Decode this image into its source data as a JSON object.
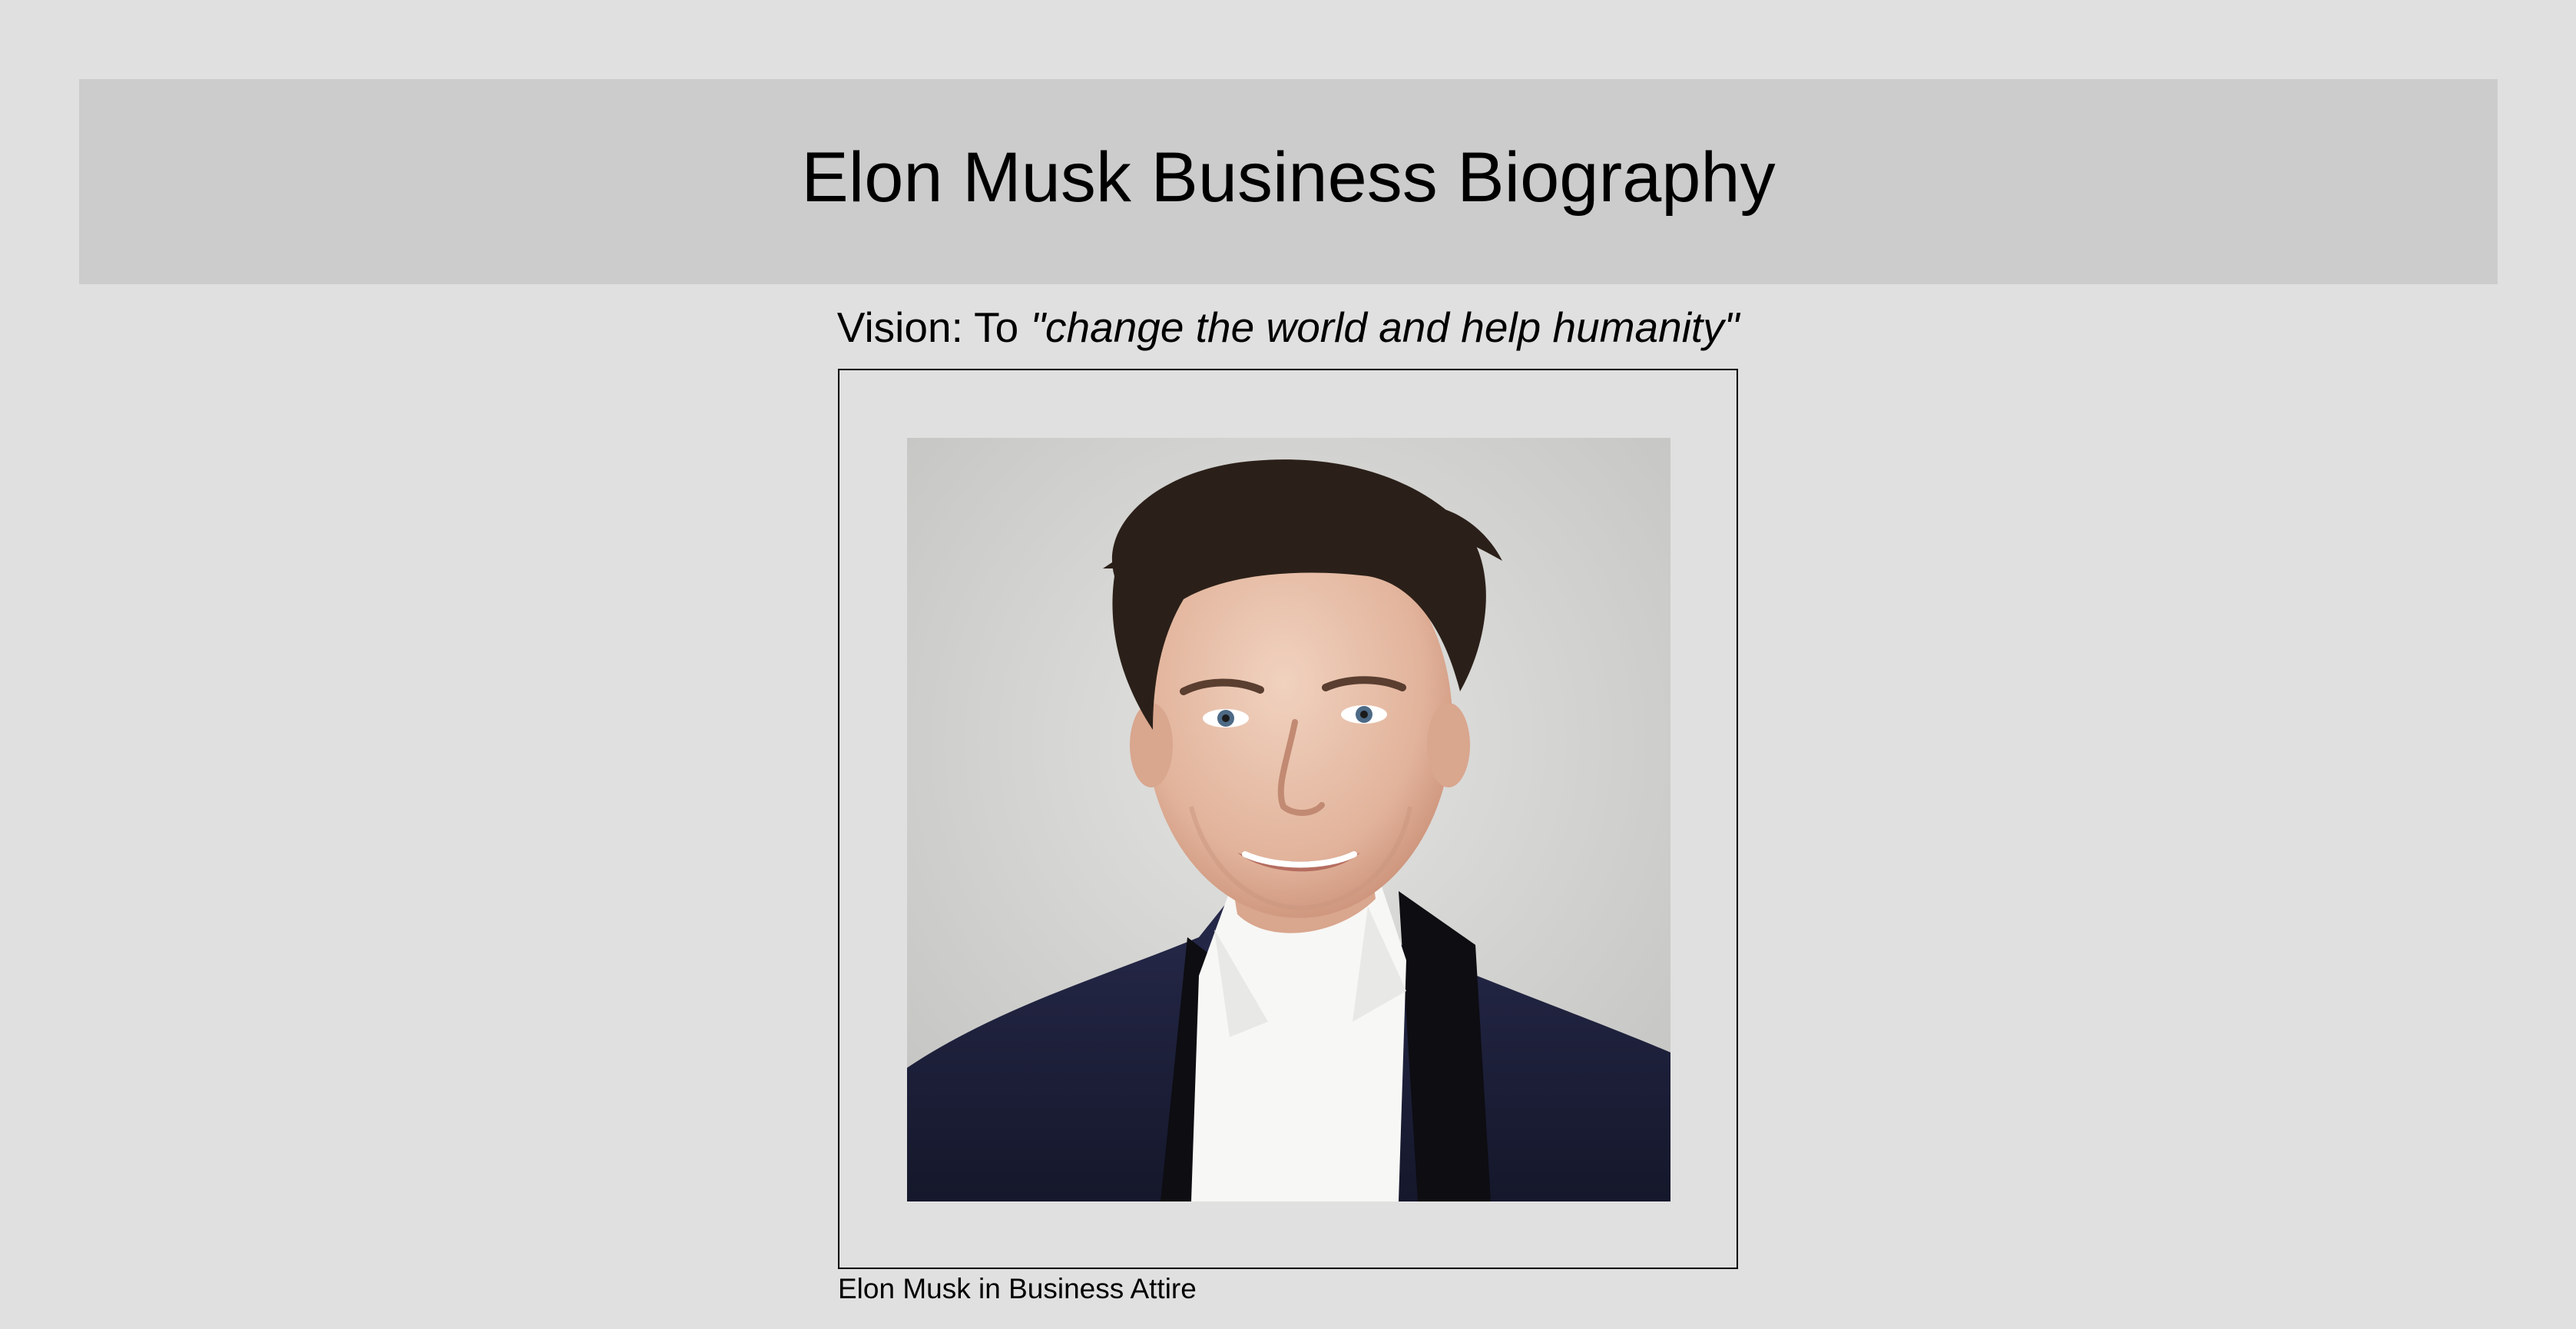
{
  "header": {
    "title": "Elon Musk Business Biography"
  },
  "vision": {
    "label": "Vision: To",
    "quote": "\"change the world and help humanity\""
  },
  "figure": {
    "caption": "Elon Musk in Business Attire"
  },
  "colors": {
    "page_background": "#e0e0e0",
    "header_background": "#cccccc",
    "text": "#000000",
    "frame_border": "#000000"
  }
}
